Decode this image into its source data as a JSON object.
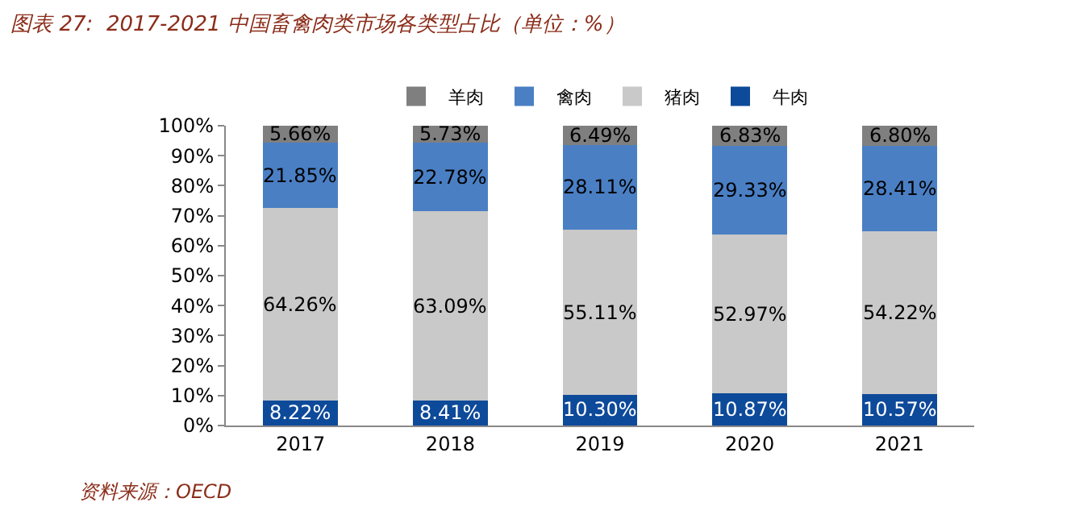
{
  "chart_data": {
    "type": "bar",
    "title": "图表 27:  2017-2021 中国畜禽肉类市场各类型占比（单位：%）",
    "categories": [
      "2017",
      "2018",
      "2019",
      "2020",
      "2021"
    ],
    "stacked": true,
    "series": [
      {
        "name": "牛肉",
        "color": "#0e4a9a",
        "values": [
          8.22,
          8.41,
          10.3,
          10.87,
          10.57
        ],
        "value_labels": [
          "8.22%",
          "8.41%",
          "10.30%",
          "10.87%",
          "10.57%"
        ]
      },
      {
        "name": "猪肉",
        "color": "#c9c9c9",
        "values": [
          64.26,
          63.09,
          55.11,
          52.97,
          54.22
        ],
        "value_labels": [
          "64.26%",
          "63.09%",
          "55.11%",
          "52.97%",
          "54.22%"
        ]
      },
      {
        "name": "禽肉",
        "color": "#4a7fc4",
        "values": [
          21.85,
          22.78,
          28.11,
          29.33,
          28.41
        ],
        "value_labels": [
          "21.85%",
          "22.78%",
          "28.11%",
          "29.33%",
          "28.41%"
        ]
      },
      {
        "name": "羊肉",
        "color": "#7f7f7f",
        "values": [
          5.66,
          5.73,
          6.49,
          6.83,
          6.8
        ],
        "value_labels": [
          "5.66%",
          "5.73%",
          "6.49%",
          "6.83%",
          "6.80%"
        ]
      }
    ],
    "ylim": [
      0,
      100
    ],
    "yticks": [
      {
        "value": 0,
        "label": "0%"
      },
      {
        "value": 10,
        "label": "10%"
      },
      {
        "value": 20,
        "label": "20%"
      },
      {
        "value": 30,
        "label": "30%"
      },
      {
        "value": 40,
        "label": "40%"
      },
      {
        "value": 50,
        "label": "50%"
      },
      {
        "value": 60,
        "label": "60%"
      },
      {
        "value": 70,
        "label": "70%"
      },
      {
        "value": 80,
        "label": "80%"
      },
      {
        "value": 90,
        "label": "90%"
      },
      {
        "value": 100,
        "label": "100%"
      }
    ],
    "legend": "top",
    "annotations": [
      "资料来源：OECD"
    ]
  }
}
